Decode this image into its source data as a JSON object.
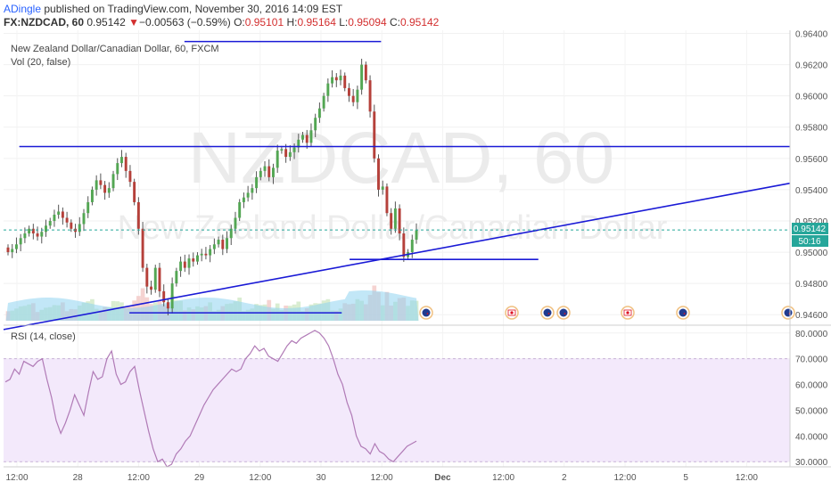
{
  "header": {
    "author": "ADingle",
    "published": "published on TradingView.com, November 30, 2016 14:09 EST",
    "symbol": "FX:NZDCAD, 60",
    "last": "0.95142",
    "change": "−0.00563 (−0.59%)",
    "o_label": "O:",
    "o": "0.95101",
    "h_label": "H:",
    "h": "0.95164",
    "l_label": "L:",
    "l": "0.95094",
    "c_label": "C:",
    "c": "0.95142"
  },
  "main_pane": {
    "legend_title": "New Zealand Dollar/Canadian Dollar, 60, FXCM",
    "legend_vol": "Vol (20, false)",
    "watermark_big": "NZDCAD, 60",
    "watermark_small": "New Zealand Dollar/Canadian Dollar",
    "price_label": "0.95142",
    "countdown_label": "50:16"
  },
  "rsi_pane": {
    "legend": "RSI (14, close)"
  },
  "colors": {
    "up": "#53a653",
    "down": "#b5403a",
    "trendline": "#1a1ad6",
    "volume": "#8fd3f0",
    "rsi_band": "#f3e9fb",
    "rsi_line": "#b07ab6",
    "price_tag": "#26a69a"
  },
  "chart_data": [
    {
      "type": "candlestick",
      "title": "New Zealand Dollar/Canadian Dollar, 60, FXCM",
      "x_ticks": [
        "12:00",
        "28",
        "12:00",
        "29",
        "12:00",
        "30",
        "12:00",
        "Dec",
        "12:00",
        "2",
        "12:00",
        "5",
        "12:00"
      ],
      "y_ticks": [
        "0.96400",
        "0.96200",
        "0.96000",
        "0.95800",
        "0.95600",
        "0.95400",
        "0.95200",
        "0.95000",
        "0.94800",
        "0.94600"
      ],
      "ylim": [
        0.9455,
        0.9642
      ],
      "last_price": 0.95142,
      "closes": [
        0.95,
        0.9502,
        0.9505,
        0.9509,
        0.9512,
        0.9515,
        0.9512,
        0.951,
        0.9513,
        0.9517,
        0.952,
        0.9524,
        0.9526,
        0.9522,
        0.9519,
        0.9515,
        0.9513,
        0.9518,
        0.9525,
        0.9532,
        0.954,
        0.9546,
        0.9543,
        0.9538,
        0.9541,
        0.955,
        0.9557,
        0.9561,
        0.9552,
        0.9545,
        0.9532,
        0.9515,
        0.949,
        0.9478,
        0.9476,
        0.949,
        0.9475,
        0.9468,
        0.9464,
        0.948,
        0.9488,
        0.9494,
        0.949,
        0.9496,
        0.9494,
        0.9498,
        0.9499,
        0.9498,
        0.9502,
        0.9505,
        0.9508,
        0.9502,
        0.9509,
        0.9515,
        0.9522,
        0.9532,
        0.9535,
        0.9538,
        0.9541,
        0.9548,
        0.9552,
        0.9555,
        0.9548,
        0.9554,
        0.9565,
        0.9566,
        0.9561,
        0.9564,
        0.9567,
        0.9572,
        0.9575,
        0.957,
        0.9578,
        0.9586,
        0.9592,
        0.96,
        0.9608,
        0.9612,
        0.961,
        0.9613,
        0.9605,
        0.96,
        0.9596,
        0.9604,
        0.962,
        0.961,
        0.959,
        0.956,
        0.954,
        0.9542,
        0.9525,
        0.9515,
        0.9528,
        0.9512,
        0.9497,
        0.95,
        0.9508,
        0.9514
      ],
      "trendlines": [
        {
          "x1": 0.02,
          "y1": 0.95676,
          "x2": 1.0,
          "y2": 0.95676
        },
        {
          "x1": 0.23,
          "y1": 0.96348,
          "x2": 0.48,
          "y2": 0.96348
        },
        {
          "x1": 0.0,
          "y1": 0.94505,
          "x2": 1.0,
          "y2": 0.95441
        },
        {
          "x1": 0.44,
          "y1": 0.94954,
          "x2": 0.68,
          "y2": 0.94954
        },
        {
          "x1": 0.16,
          "y1": 0.94612,
          "x2": 0.43,
          "y2": 0.94612
        }
      ],
      "volume": "relative",
      "events": [
        "NZ",
        "CA",
        "CA",
        "NZ",
        "NZ",
        "CA",
        "NZ",
        "NZ"
      ]
    },
    {
      "type": "line",
      "title": "RSI (14, close)",
      "y_ticks": [
        "80.0000",
        "70.0000",
        "60.0000",
        "50.0000",
        "40.0000",
        "30.0000"
      ],
      "ylim": [
        28,
        82
      ],
      "bands": [
        30,
        70
      ],
      "values": [
        61,
        62,
        66,
        64,
        69,
        68,
        67,
        69,
        70,
        62,
        55,
        46,
        41,
        45,
        50,
        56,
        52,
        48,
        57,
        65,
        62,
        63,
        70,
        73,
        64,
        60,
        61,
        65,
        67,
        58,
        50,
        42,
        35,
        30,
        31,
        28,
        29,
        33,
        35,
        38,
        40,
        44,
        48,
        52,
        55,
        58,
        60,
        62,
        64,
        66,
        65,
        66,
        70,
        72,
        75,
        73,
        74,
        71,
        70,
        69,
        72,
        75,
        77,
        76,
        78,
        79,
        80,
        81,
        80,
        78,
        75,
        70,
        64,
        60,
        53,
        48,
        40,
        36,
        35,
        33,
        37,
        34,
        33,
        31,
        30,
        32,
        34,
        36,
        37,
        38
      ]
    }
  ]
}
